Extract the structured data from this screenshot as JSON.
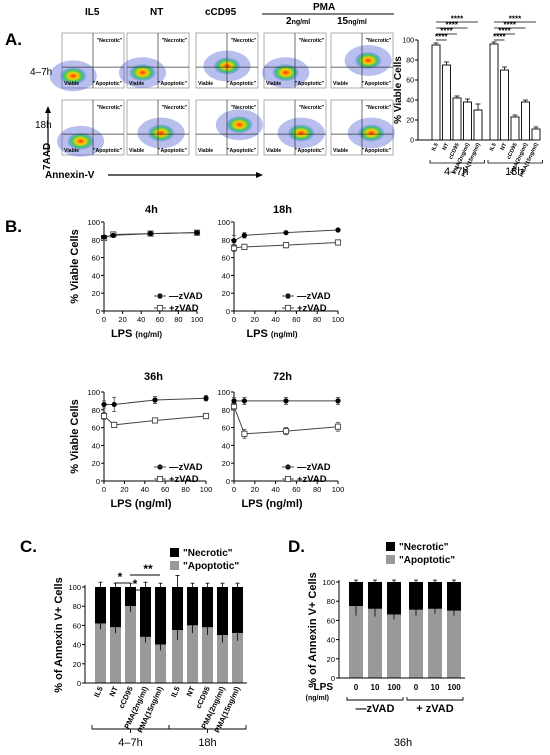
{
  "panel_a": {
    "letter": "A.",
    "columns": [
      "IL5",
      "NT",
      "cCD95"
    ],
    "pma_label": "PMA",
    "pma_doses": [
      {
        "num": "2",
        "unit": "ng/ml"
      },
      {
        "num": "15",
        "unit": "ng/ml"
      }
    ],
    "rows": [
      "4–7h",
      "18h"
    ],
    "quadrants": {
      "necrotic": "\"Necrotic\"",
      "apoptotic": "\"Apoptotic\"",
      "viable": "Viable"
    },
    "y_axis": "7AAD",
    "x_axis": "Annexin-V",
    "bar_chart": {
      "type": "bar",
      "ylabel": "% Viable Cells",
      "ylim": [
        0,
        100
      ],
      "yticks": [
        0,
        20,
        40,
        60,
        80,
        100
      ],
      "categories": [
        "IL5",
        "NT",
        "cCD95",
        "PMA(2ng/ml)",
        "PMA(15ng/ml)"
      ],
      "groups": [
        {
          "label": "4–7h",
          "values": [
            95,
            75,
            42,
            38,
            30
          ],
          "errors": [
            2,
            3,
            2,
            3,
            6
          ]
        },
        {
          "label": "18h",
          "values": [
            96,
            70,
            23,
            38,
            11
          ],
          "errors": [
            2,
            3,
            2,
            2,
            2
          ]
        }
      ],
      "significance": "****"
    }
  },
  "panel_b": {
    "letter": "B.",
    "ylabel": "% Viable Cells",
    "xlabel": "LPS",
    "xunit": "(ng/ml)",
    "xunit_tight": "(ng/ml)",
    "legend": {
      "minus": "—zVAD",
      "plus": "+zVAD"
    },
    "xticks": [
      0,
      20,
      40,
      60,
      80,
      100
    ],
    "yticks": [
      0,
      20,
      40,
      60,
      80,
      100
    ],
    "plots": [
      {
        "title": "4h",
        "minus": {
          "x": [
            0,
            10,
            50,
            100
          ],
          "y": [
            83,
            85,
            87,
            88
          ],
          "err": [
            1,
            1,
            1,
            1
          ]
        },
        "plus": {
          "x": [
            0,
            10,
            50,
            100
          ],
          "y": [
            82,
            86,
            87,
            88
          ],
          "err": [
            2,
            1,
            1,
            1
          ]
        }
      },
      {
        "title": "18h",
        "minus": {
          "x": [
            0,
            10,
            50,
            100
          ],
          "y": [
            79,
            85,
            88,
            91
          ],
          "err": [
            6,
            3,
            1,
            1
          ]
        },
        "plus": {
          "x": [
            0,
            10,
            50,
            100
          ],
          "y": [
            71,
            72,
            74,
            77
          ],
          "err": [
            4,
            3,
            3,
            3
          ]
        }
      },
      {
        "title": "36h",
        "minus": {
          "x": [
            0,
            10,
            50,
            100
          ],
          "y": [
            86,
            86,
            91,
            93
          ],
          "err": [
            4,
            8,
            4,
            3
          ]
        },
        "plus": {
          "x": [
            0,
            10,
            50,
            100
          ],
          "y": [
            73,
            63,
            68,
            73
          ],
          "err": [
            4,
            3,
            2,
            3
          ]
        }
      },
      {
        "title": "72h",
        "minus": {
          "x": [
            0,
            10,
            50,
            100
          ],
          "y": [
            90,
            90,
            90,
            90
          ],
          "err": [
            4,
            4,
            4,
            4
          ]
        },
        "plus": {
          "x": [
            0,
            10,
            50,
            100
          ],
          "y": [
            84,
            53,
            56,
            61
          ],
          "err": [
            4,
            5,
            4,
            5
          ]
        }
      }
    ]
  },
  "panel_c": {
    "letter": "C.",
    "ylabel": "% of Annexin V+ Cells",
    "legend": {
      "necrotic": "\"Necrotic\"",
      "apoptotic": "\"Apoptotic\""
    },
    "yticks": [
      0,
      20,
      40,
      60,
      80,
      100
    ],
    "categories": [
      "IL5",
      "NT",
      "cCD95",
      "PMA(2ng/ml)",
      "PMA(15ng/ml)",
      "IL5",
      "NT",
      "cCD95",
      "PMA(2ng/ml)",
      "PMA(15ng/ml)"
    ],
    "apoptotic": [
      62,
      58,
      80,
      48,
      40,
      55,
      60,
      58,
      50,
      52
    ],
    "apoptotic_err": [
      6,
      6,
      6,
      6,
      6,
      10,
      8,
      8,
      8,
      8
    ],
    "total_err": [
      5,
      4,
      4,
      5,
      4,
      12,
      4,
      4,
      4,
      4
    ],
    "groups": [
      "4–7h",
      "18h"
    ],
    "sig": {
      "single1": "*",
      "single2": "*",
      "double": "**"
    }
  },
  "panel_d": {
    "letter": "D.",
    "ylabel": "% of Annexin V+ Cells",
    "legend": {
      "necrotic": "\"Necrotic\"",
      "apoptotic": "\"Apoptotic\""
    },
    "yticks": [
      0,
      20,
      40,
      60,
      80,
      100
    ],
    "xlabel": "LPS",
    "xunit": "(ng/ml)",
    "categories": [
      "0",
      "10",
      "100",
      "0",
      "10",
      "100"
    ],
    "apoptotic": [
      75,
      72,
      66,
      71,
      72,
      70
    ],
    "apoptotic_err": [
      10,
      8,
      5,
      6,
      5,
      5
    ],
    "groups": [
      "—zVAD",
      "+ zVAD"
    ],
    "time": "36h"
  }
}
